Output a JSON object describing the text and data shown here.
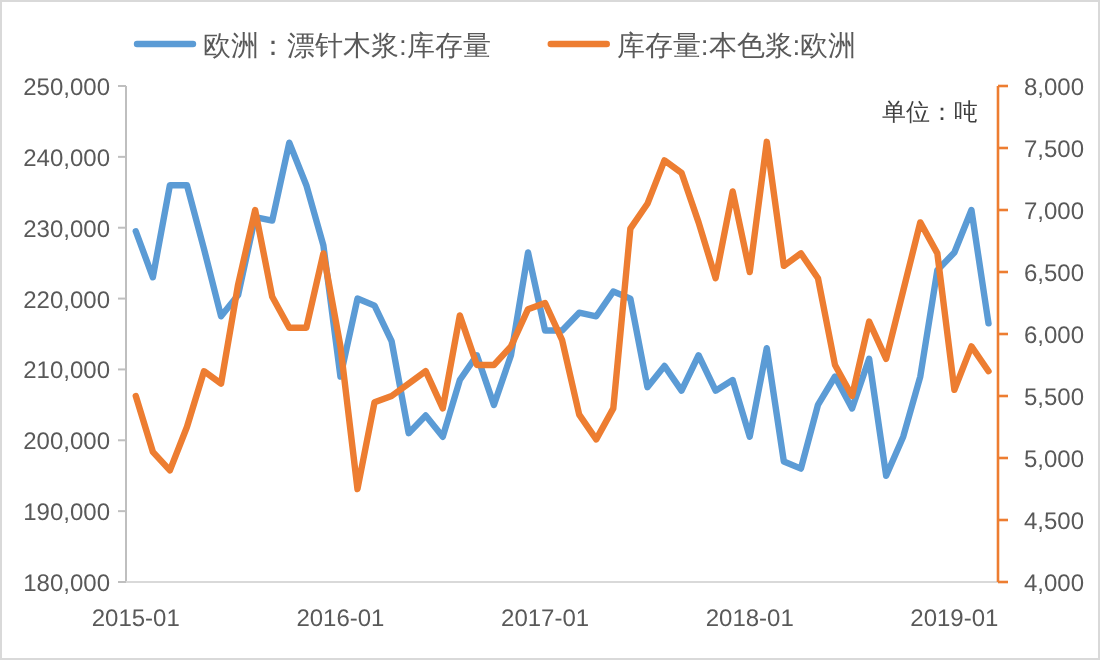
{
  "chart_data": {
    "type": "line",
    "x": [
      "2015-01",
      "2015-02",
      "2015-03",
      "2015-04",
      "2015-05",
      "2015-06",
      "2015-07",
      "2015-08",
      "2015-09",
      "2015-10",
      "2015-11",
      "2015-12",
      "2016-01",
      "2016-02",
      "2016-03",
      "2016-04",
      "2016-05",
      "2016-06",
      "2016-07",
      "2016-08",
      "2016-09",
      "2016-10",
      "2016-11",
      "2016-12",
      "2017-01",
      "2017-02",
      "2017-03",
      "2017-04",
      "2017-05",
      "2017-06",
      "2017-07",
      "2017-08",
      "2017-09",
      "2017-10",
      "2017-11",
      "2017-12",
      "2018-01",
      "2018-02",
      "2018-03",
      "2018-04",
      "2018-05",
      "2018-06",
      "2018-07",
      "2018-08",
      "2018-09",
      "2018-10",
      "2018-11",
      "2018-12",
      "2019-01",
      "2019-02",
      "2019-03"
    ],
    "series": [
      {
        "name": "欧洲：漂针木浆:库存量",
        "color": "#5b9bd5",
        "values": [
          229500,
          223000,
          236000,
          236000,
          227000,
          217500,
          220500,
          231500,
          231000,
          242000,
          236000,
          227500,
          209000,
          220000,
          219000,
          214000,
          201000,
          203500,
          200500,
          208500,
          212000,
          205000,
          212000,
          226500,
          215500,
          215500,
          218000,
          217500,
          221000,
          220000,
          207500,
          210500,
          207000,
          212000,
          207000,
          208500,
          200500,
          213000,
          197000,
          196000,
          205000,
          209000,
          204500,
          211500,
          195000,
          200500,
          209000,
          224000,
          226500,
          232500,
          216500
        ]
      },
      {
        "name": "库存量:本色浆:欧洲",
        "color": "#ed7d31",
        "axis": "y2",
        "values": [
          5500,
          5050,
          4900,
          5250,
          5700,
          5600,
          6400,
          7000,
          6300,
          6050,
          6050,
          6650,
          5900,
          4750,
          5450,
          5500,
          5600,
          5700,
          5400,
          6150,
          5750,
          5750,
          5900,
          6200,
          6250,
          5950,
          5350,
          5150,
          5400,
          6850,
          7050,
          7400,
          7300,
          6900,
          6450,
          7150,
          6500,
          7550,
          6550,
          6650,
          6450,
          5750,
          5500,
          6100,
          5800,
          6350,
          6900,
          6650,
          5550,
          5900,
          5700
        ]
      }
    ],
    "ylim": [
      180000,
      250000
    ],
    "yticks": [
      {
        "value": 180000,
        "label": "180,000"
      },
      {
        "value": 190000,
        "label": "190,000"
      },
      {
        "value": 200000,
        "label": "200,000"
      },
      {
        "value": 210000,
        "label": "210,000"
      },
      {
        "value": 220000,
        "label": "220,000"
      },
      {
        "value": 230000,
        "label": "230,000"
      },
      {
        "value": 240000,
        "label": "240,000"
      },
      {
        "value": 250000,
        "label": "250,000"
      }
    ],
    "y2lim": [
      4000,
      8000
    ],
    "y2ticks": [
      {
        "value": 4000,
        "label": "4,000"
      },
      {
        "value": 4500,
        "label": "4,500"
      },
      {
        "value": 5000,
        "label": "5,000"
      },
      {
        "value": 5500,
        "label": "5,500"
      },
      {
        "value": 6000,
        "label": "6,000"
      },
      {
        "value": 6500,
        "label": "6,500"
      },
      {
        "value": 7000,
        "label": "7,000"
      },
      {
        "value": 7500,
        "label": "7,500"
      },
      {
        "value": 8000,
        "label": "8,000"
      }
    ],
    "xlim": [
      "2014-12-14",
      "2019-03-18"
    ],
    "xticks": [
      "2015-01",
      "2016-01",
      "2017-01",
      "2018-01",
      "2019-01"
    ],
    "legend": "top",
    "annotations": [
      "单位：吨"
    ]
  }
}
